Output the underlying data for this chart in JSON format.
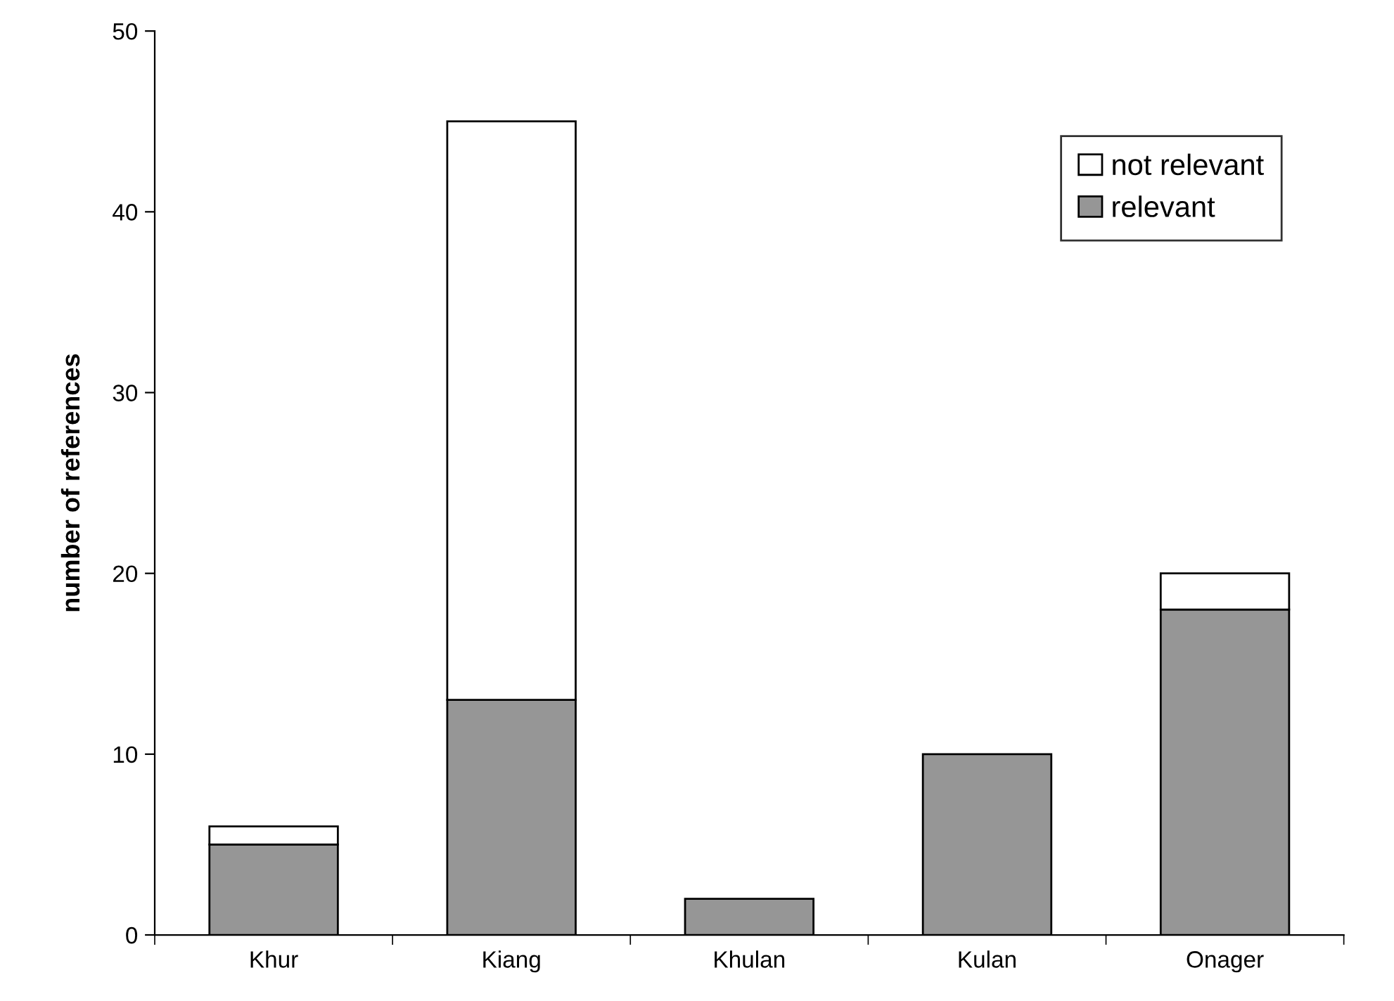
{
  "chart_data": {
    "type": "bar",
    "stacked": true,
    "ylabel": "number of references",
    "categories": [
      "Khur",
      "Kiang",
      "Khulan",
      "Kulan",
      "Onager"
    ],
    "series": [
      {
        "name": "relevant",
        "color": "#969696",
        "values": [
          5,
          13,
          2,
          10,
          18
        ]
      },
      {
        "name": "not relevant",
        "color": "#ffffff",
        "values": [
          1,
          32,
          null,
          null,
          2
        ]
      }
    ],
    "ylim": [
      0,
      50
    ],
    "yticks": [
      0,
      10,
      20,
      30,
      40,
      50
    ],
    "grid": false,
    "legend": "top right"
  }
}
